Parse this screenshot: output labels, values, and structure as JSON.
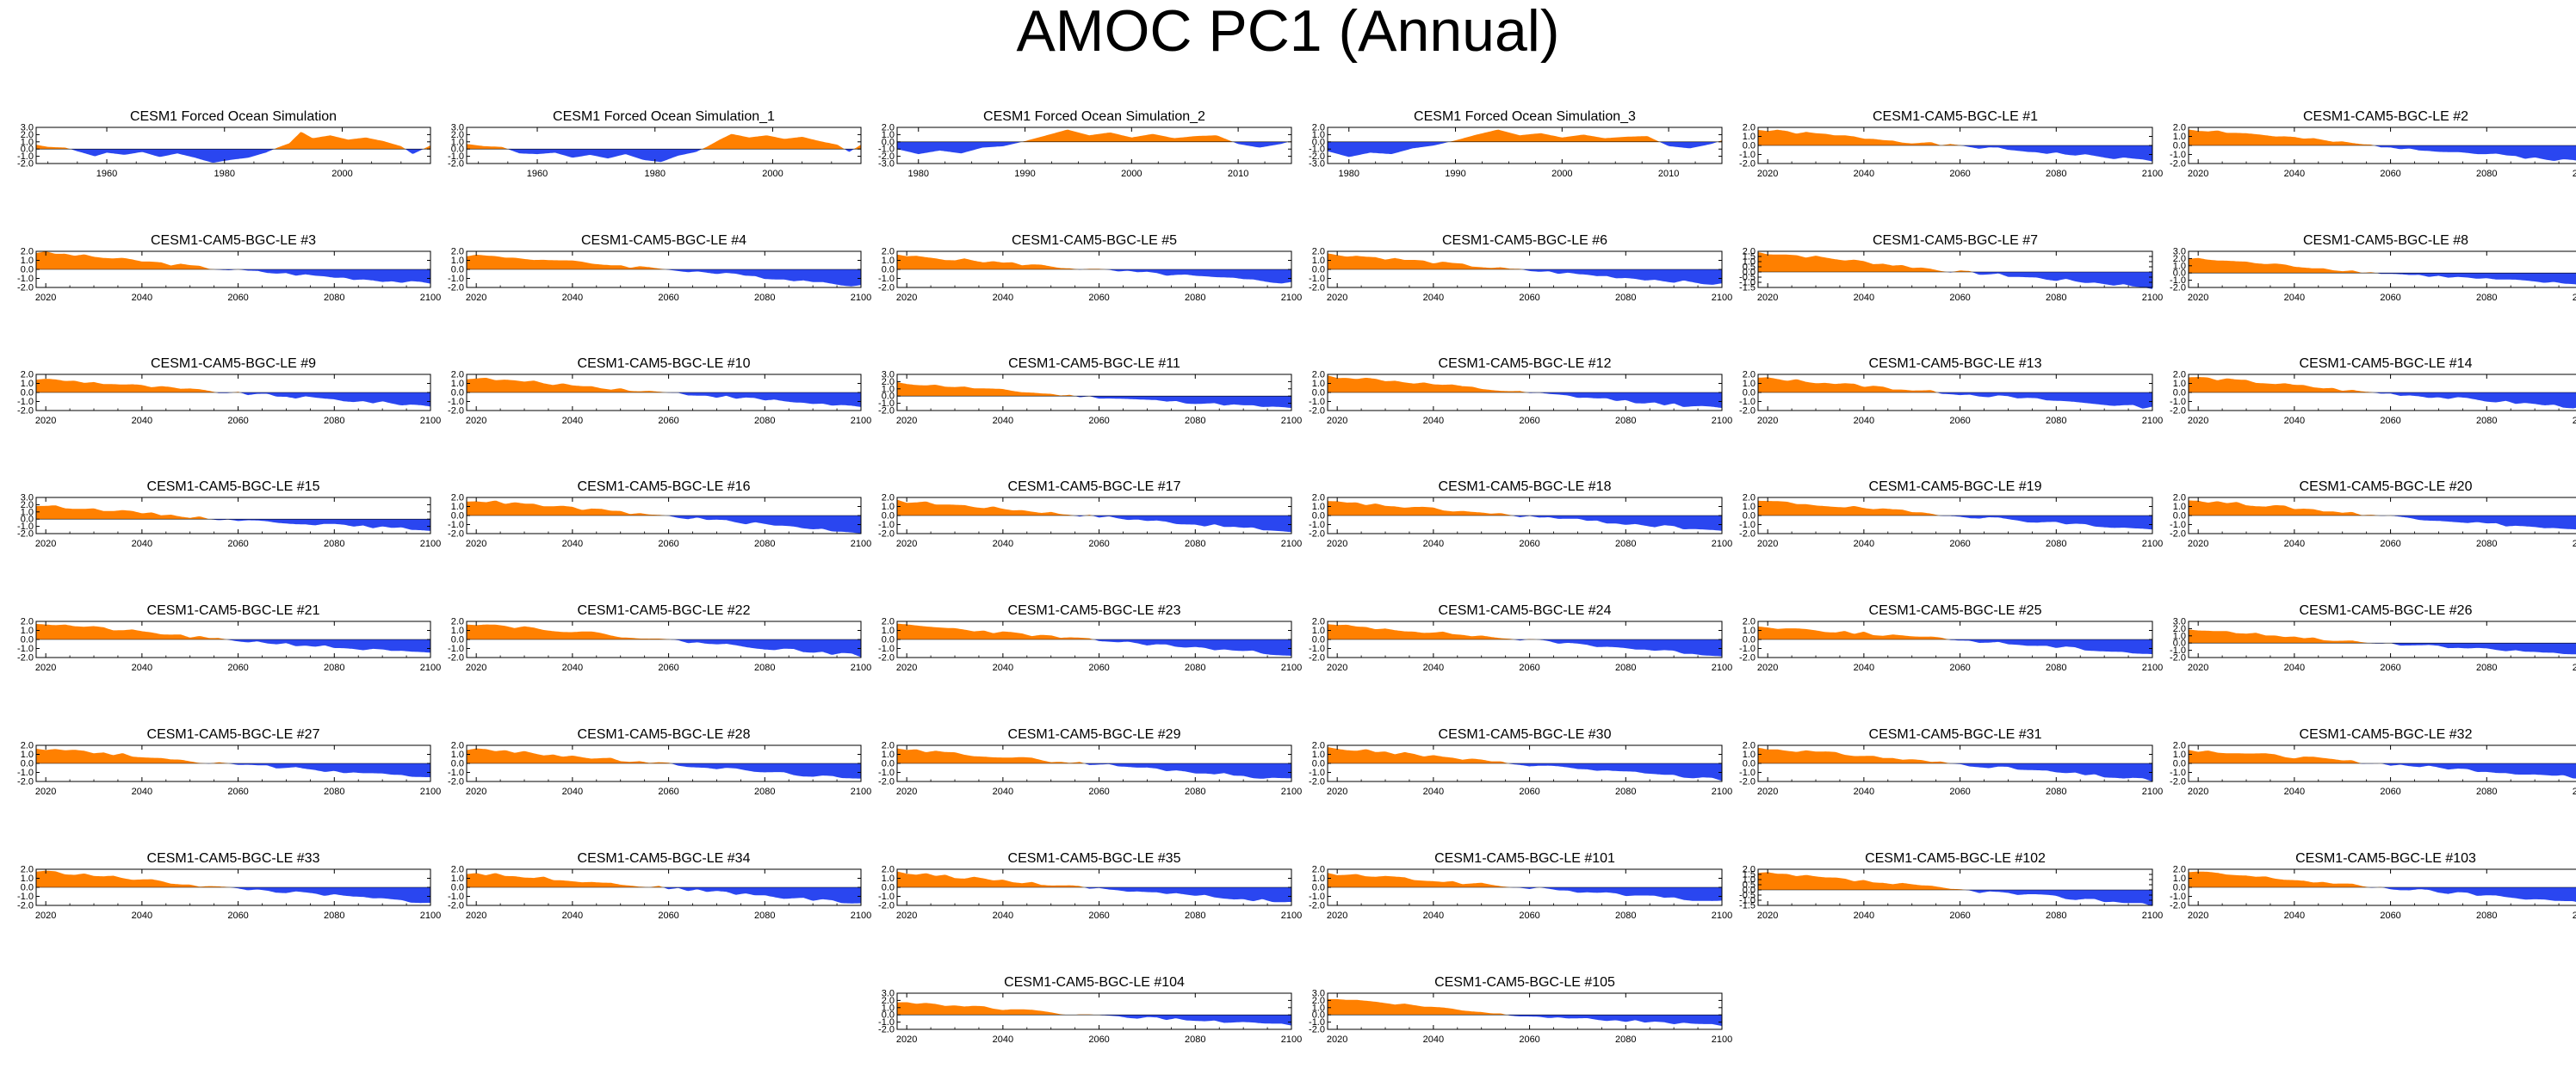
{
  "title": "AMOC PC1 (Annual)",
  "colors": {
    "positive": "#ff8000",
    "negative": "#2a46f0",
    "axis": "#000000"
  },
  "chart_data": {
    "type": "area",
    "title": "AMOC PC1 (Annual)",
    "description_of_series": "Each panel shows the AMOC principal component time series; values above 0 shaded orange, below 0 shaded blue.",
    "panels": [
      {
        "name": "CESM1 Forced Ocean Simulation",
        "xlim": [
          1948,
          2015
        ],
        "xticks": [
          1960,
          1980,
          2000
        ],
        "ylim": [
          -2.0,
          3.0
        ],
        "yticks": [
          3.0,
          2.0,
          1.0,
          0.0,
          -1.0,
          -2.0
        ],
        "knots": [
          [
            1948,
            0.6
          ],
          [
            1950,
            0.3
          ],
          [
            1953,
            0.2
          ],
          [
            1955,
            -0.3
          ],
          [
            1958,
            -1.0
          ],
          [
            1960,
            -0.5
          ],
          [
            1963,
            -0.8
          ],
          [
            1966,
            -0.4
          ],
          [
            1969,
            -1.1
          ],
          [
            1972,
            -0.6
          ],
          [
            1975,
            -1.2
          ],
          [
            1978,
            -1.9
          ],
          [
            1981,
            -1.5
          ],
          [
            1984,
            -1.2
          ],
          [
            1987,
            -0.5
          ],
          [
            1989,
            0.2
          ],
          [
            1991,
            0.8
          ],
          [
            1993,
            2.4
          ],
          [
            1995,
            1.5
          ],
          [
            1998,
            1.9
          ],
          [
            2001,
            1.3
          ],
          [
            2004,
            1.6
          ],
          [
            2007,
            1.1
          ],
          [
            2010,
            0.4
          ],
          [
            2012,
            -0.7
          ],
          [
            2014,
            0.1
          ],
          [
            2015,
            0.5
          ]
        ]
      },
      {
        "name": "CESM1 Forced Ocean Simulation_1",
        "xlim": [
          1948,
          2015
        ],
        "xticks": [
          1960,
          1980,
          2000
        ],
        "ylim": [
          -2.0,
          3.0
        ],
        "yticks": [
          3.0,
          2.0,
          1.0,
          0.0,
          -1.0,
          -2.0
        ],
        "knots": [
          [
            1948,
            0.7
          ],
          [
            1951,
            0.4
          ],
          [
            1954,
            0.3
          ],
          [
            1957,
            -0.6
          ],
          [
            1960,
            -0.7
          ],
          [
            1963,
            -0.5
          ],
          [
            1966,
            -1.2
          ],
          [
            1969,
            -0.8
          ],
          [
            1972,
            -1.3
          ],
          [
            1975,
            -0.7
          ],
          [
            1978,
            -1.5
          ],
          [
            1981,
            -1.8
          ],
          [
            1984,
            -0.9
          ],
          [
            1987,
            -0.4
          ],
          [
            1989,
            0.4
          ],
          [
            1991,
            1.3
          ],
          [
            1993,
            2.1
          ],
          [
            1996,
            1.6
          ],
          [
            1999,
            1.9
          ],
          [
            2002,
            1.4
          ],
          [
            2005,
            1.7
          ],
          [
            2008,
            1.1
          ],
          [
            2011,
            0.6
          ],
          [
            2013,
            -0.4
          ],
          [
            2015,
            0.6
          ]
        ]
      },
      {
        "name": "CESM1 Forced Ocean Simulation_2",
        "xlim": [
          1978,
          2015
        ],
        "xticks": [
          1980,
          1990,
          2000,
          2010
        ],
        "ylim": [
          -3.0,
          2.0
        ],
        "yticks": [
          2.0,
          1.0,
          0.0,
          -1.0,
          -2.0,
          -3.0
        ],
        "knots": [
          [
            1978,
            -1.0
          ],
          [
            1980,
            -1.7
          ],
          [
            1982,
            -1.2
          ],
          [
            1984,
            -1.6
          ],
          [
            1986,
            -0.8
          ],
          [
            1988,
            -0.6
          ],
          [
            1990,
            0.1
          ],
          [
            1992,
            0.9
          ],
          [
            1994,
            1.7
          ],
          [
            1996,
            0.9
          ],
          [
            1998,
            1.3
          ],
          [
            2000,
            0.6
          ],
          [
            2002,
            1.1
          ],
          [
            2004,
            0.5
          ],
          [
            2006,
            0.8
          ],
          [
            2008,
            0.9
          ],
          [
            2010,
            -0.3
          ],
          [
            2012,
            -0.8
          ],
          [
            2014,
            -0.3
          ],
          [
            2015,
            0.1
          ]
        ]
      },
      {
        "name": "CESM1 Forced Ocean Simulation_3",
        "xlim": [
          1978,
          2015
        ],
        "xticks": [
          1980,
          1990,
          2000,
          2010
        ],
        "ylim": [
          -3.0,
          2.0
        ],
        "yticks": [
          2.0,
          1.0,
          0.0,
          -1.0,
          -2.0,
          -3.0
        ],
        "knots": [
          [
            1978,
            -1.3
          ],
          [
            1980,
            -2.1
          ],
          [
            1982,
            -1.5
          ],
          [
            1984,
            -1.7
          ],
          [
            1986,
            -0.9
          ],
          [
            1988,
            -0.5
          ],
          [
            1990,
            0.2
          ],
          [
            1992,
            1.0
          ],
          [
            1994,
            1.7
          ],
          [
            1996,
            0.9
          ],
          [
            1998,
            1.2
          ],
          [
            2000,
            0.6
          ],
          [
            2002,
            1.0
          ],
          [
            2004,
            0.5
          ],
          [
            2006,
            0.7
          ],
          [
            2008,
            0.8
          ],
          [
            2010,
            -0.6
          ],
          [
            2012,
            -0.9
          ],
          [
            2014,
            -0.3
          ],
          [
            2015,
            0.2
          ]
        ]
      },
      {
        "name": "CESM1-CAM5-BGC-LE #1",
        "ylim": [
          -2.0,
          2.0
        ],
        "peak": 1.7,
        "end": -1.7,
        "cross": 2058,
        "seed": 1
      },
      {
        "name": "CESM1-CAM5-BGC-LE #2",
        "ylim": [
          -2.0,
          2.0
        ],
        "peak": 1.8,
        "end": -1.8,
        "cross": 2056,
        "seed": 2
      },
      {
        "name": "CESM1-CAM5-BGC-LE #3",
        "ylim": [
          -2.0,
          2.0
        ],
        "peak": 1.9,
        "end": -1.6,
        "cross": 2057,
        "seed": 3
      },
      {
        "name": "CESM1-CAM5-BGC-LE #4",
        "ylim": [
          -2.0,
          2.0
        ],
        "peak": 1.6,
        "end": -1.8,
        "cross": 2060,
        "seed": 4
      },
      {
        "name": "CESM1-CAM5-BGC-LE #5",
        "ylim": [
          -2.0,
          2.0
        ],
        "peak": 1.5,
        "end": -1.5,
        "cross": 2058,
        "seed": 5
      },
      {
        "name": "CESM1-CAM5-BGC-LE #6",
        "ylim": [
          -2.0,
          2.0
        ],
        "peak": 1.7,
        "end": -1.7,
        "cross": 2056,
        "seed": 6
      },
      {
        "name": "CESM1-CAM5-BGC-LE #7",
        "ylim": [
          -1.5,
          2.0
        ],
        "yticks": [
          2.0,
          1.5,
          1.0,
          0.5,
          0.0,
          -0.5,
          -1.0,
          -1.5
        ],
        "peak": 1.9,
        "end": -1.5,
        "cross": 2060,
        "seed": 7
      },
      {
        "name": "CESM1-CAM5-BGC-LE #8",
        "ylim": [
          -2.0,
          3.0
        ],
        "peak": 2.0,
        "end": -1.6,
        "cross": 2057,
        "seed": 8
      },
      {
        "name": "CESM1-CAM5-BGC-LE #9",
        "ylim": [
          -2.0,
          2.0
        ],
        "peak": 1.5,
        "end": -1.5,
        "cross": 2057,
        "seed": 9
      },
      {
        "name": "CESM1-CAM5-BGC-LE #10",
        "ylim": [
          -2.0,
          2.0
        ],
        "peak": 1.6,
        "end": -1.6,
        "cross": 2059,
        "seed": 10
      },
      {
        "name": "CESM1-CAM5-BGC-LE #11",
        "ylim": [
          -2.0,
          3.0
        ],
        "peak": 1.8,
        "end": -1.7,
        "cross": 2055,
        "seed": 11
      },
      {
        "name": "CESM1-CAM5-BGC-LE #12",
        "ylim": [
          -2.0,
          2.0
        ],
        "peak": 1.8,
        "end": -1.8,
        "cross": 2058,
        "seed": 12
      },
      {
        "name": "CESM1-CAM5-BGC-LE #13",
        "ylim": [
          -2.0,
          2.0
        ],
        "peak": 1.6,
        "end": -1.7,
        "cross": 2056,
        "seed": 13
      },
      {
        "name": "CESM1-CAM5-BGC-LE #14",
        "ylim": [
          -2.0,
          2.0
        ],
        "peak": 1.7,
        "end": -1.7,
        "cross": 2056,
        "seed": 14
      },
      {
        "name": "CESM1-CAM5-BGC-LE #15",
        "ylim": [
          -2.0,
          3.0
        ],
        "peak": 1.9,
        "end": -1.5,
        "cross": 2056,
        "seed": 15
      },
      {
        "name": "CESM1-CAM5-BGC-LE #16",
        "ylim": [
          -2.0,
          2.0
        ],
        "peak": 1.7,
        "end": -1.9,
        "cross": 2058,
        "seed": 16
      },
      {
        "name": "CESM1-CAM5-BGC-LE #17",
        "ylim": [
          -2.0,
          2.0
        ],
        "peak": 1.6,
        "end": -1.8,
        "cross": 2057,
        "seed": 17
      },
      {
        "name": "CESM1-CAM5-BGC-LE #18",
        "ylim": [
          -2.0,
          2.0
        ],
        "peak": 1.5,
        "end": -1.7,
        "cross": 2057,
        "seed": 18
      },
      {
        "name": "CESM1-CAM5-BGC-LE #19",
        "ylim": [
          -2.0,
          2.0
        ],
        "peak": 1.6,
        "end": -1.6,
        "cross": 2059,
        "seed": 19
      },
      {
        "name": "CESM1-CAM5-BGC-LE #20",
        "ylim": [
          -2.0,
          2.0
        ],
        "peak": 1.7,
        "end": -1.7,
        "cross": 2058,
        "seed": 20
      },
      {
        "name": "CESM1-CAM5-BGC-LE #21",
        "ylim": [
          -2.0,
          2.0
        ],
        "peak": 1.8,
        "end": -1.6,
        "cross": 2056,
        "seed": 21
      },
      {
        "name": "CESM1-CAM5-BGC-LE #22",
        "ylim": [
          -2.0,
          2.0
        ],
        "peak": 1.8,
        "end": -1.8,
        "cross": 2058,
        "seed": 22
      },
      {
        "name": "CESM1-CAM5-BGC-LE #23",
        "ylim": [
          -2.0,
          2.0
        ],
        "peak": 1.6,
        "end": -1.7,
        "cross": 2057,
        "seed": 23
      },
      {
        "name": "CESM1-CAM5-BGC-LE #24",
        "ylim": [
          -2.0,
          2.0
        ],
        "peak": 1.6,
        "end": -1.8,
        "cross": 2058,
        "seed": 24
      },
      {
        "name": "CESM1-CAM5-BGC-LE #25",
        "ylim": [
          -2.0,
          2.0
        ],
        "peak": 1.4,
        "end": -1.6,
        "cross": 2058,
        "seed": 25
      },
      {
        "name": "CESM1-CAM5-BGC-LE #26",
        "ylim": [
          -2.0,
          3.0
        ],
        "peak": 1.9,
        "end": -1.6,
        "cross": 2056,
        "seed": 26
      },
      {
        "name": "CESM1-CAM5-BGC-LE #27",
        "ylim": [
          -2.0,
          2.0
        ],
        "peak": 1.7,
        "end": -1.6,
        "cross": 2056,
        "seed": 27
      },
      {
        "name": "CESM1-CAM5-BGC-LE #28",
        "ylim": [
          -2.0,
          2.0
        ],
        "peak": 1.6,
        "end": -1.8,
        "cross": 2058,
        "seed": 28
      },
      {
        "name": "CESM1-CAM5-BGC-LE #29",
        "ylim": [
          -2.0,
          2.0
        ],
        "peak": 1.5,
        "end": -1.8,
        "cross": 2057,
        "seed": 29
      },
      {
        "name": "CESM1-CAM5-BGC-LE #30",
        "ylim": [
          -2.0,
          2.0
        ],
        "peak": 1.7,
        "end": -1.8,
        "cross": 2056,
        "seed": 30
      },
      {
        "name": "CESM1-CAM5-BGC-LE #31",
        "ylim": [
          -2.0,
          2.0
        ],
        "peak": 1.7,
        "end": -1.9,
        "cross": 2058,
        "seed": 31
      },
      {
        "name": "CESM1-CAM5-BGC-LE #32",
        "ylim": [
          -2.0,
          2.0
        ],
        "peak": 1.5,
        "end": -1.6,
        "cross": 2057,
        "seed": 32
      },
      {
        "name": "CESM1-CAM5-BGC-LE #33",
        "ylim": [
          -2.0,
          2.0
        ],
        "peak": 1.8,
        "end": -1.7,
        "cross": 2056,
        "seed": 33
      },
      {
        "name": "CESM1-CAM5-BGC-LE #34",
        "ylim": [
          -2.0,
          2.0
        ],
        "peak": 1.6,
        "end": -1.8,
        "cross": 2058,
        "seed": 34
      },
      {
        "name": "CESM1-CAM5-BGC-LE #35",
        "ylim": [
          -2.0,
          2.0
        ],
        "peak": 1.6,
        "end": -1.7,
        "cross": 2057,
        "seed": 35
      },
      {
        "name": "CESM1-CAM5-BGC-LE #101",
        "ylim": [
          -2.0,
          2.0
        ],
        "peak": 1.5,
        "end": -1.6,
        "cross": 2058,
        "seed": 36
      },
      {
        "name": "CESM1-CAM5-BGC-LE #102",
        "ylim": [
          -1.5,
          2.0
        ],
        "yticks": [
          2.0,
          1.5,
          1.0,
          0.5,
          0.0,
          -0.5,
          -1.0,
          -1.5
        ],
        "peak": 1.6,
        "end": -1.4,
        "cross": 2060,
        "seed": 37
      },
      {
        "name": "CESM1-CAM5-BGC-LE #103",
        "ylim": [
          -2.0,
          2.0
        ],
        "peak": 1.7,
        "end": -1.7,
        "cross": 2057,
        "seed": 38
      },
      {
        "name": "CESM1-CAM5-BGC-LE #104",
        "ylim": [
          -2.0,
          3.0
        ],
        "peak": 1.8,
        "end": -1.4,
        "cross": 2056,
        "seed": 39
      },
      {
        "name": "CESM1-CAM5-BGC-LE #105",
        "ylim": [
          -2.0,
          3.0
        ],
        "peak": 2.3,
        "end": -1.5,
        "cross": 2056,
        "seed": 40
      }
    ],
    "le_defaults": {
      "xlim": [
        2018,
        2100
      ],
      "xticks": [
        2020,
        2040,
        2060,
        2080,
        2100
      ]
    }
  }
}
